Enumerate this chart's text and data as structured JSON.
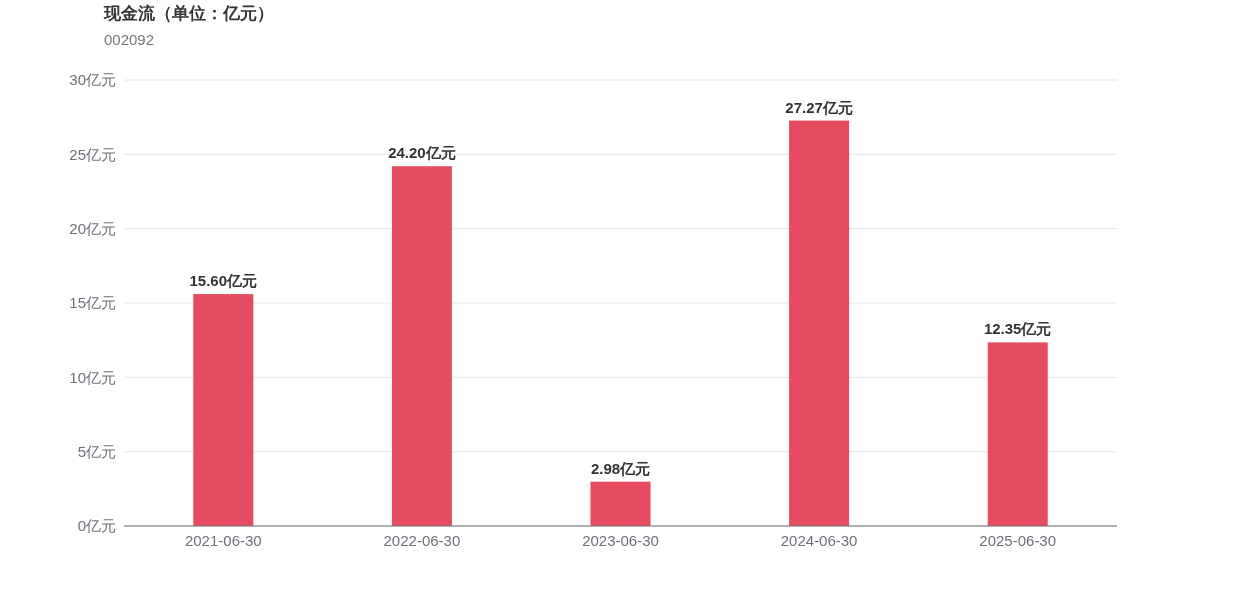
{
  "chart_data": {
    "type": "bar",
    "title": "现金流（单位：亿元）",
    "subtitle": "002092",
    "categories": [
      "2021-06-30",
      "2022-06-30",
      "2023-06-30",
      "2024-06-30",
      "2025-06-30"
    ],
    "values": [
      15.6,
      24.2,
      2.98,
      27.27,
      12.35
    ],
    "value_labels": [
      "15.60亿元",
      "24.20亿元",
      "2.98亿元",
      "27.27亿元",
      "12.35亿元"
    ],
    "color": "#e64b5f",
    "ylim": [
      0,
      30
    ],
    "yticks": [
      {
        "value": 0,
        "label": "0亿元"
      },
      {
        "value": 5,
        "label": "5亿元"
      },
      {
        "value": 10,
        "label": "10亿元"
      },
      {
        "value": 15,
        "label": "15亿元"
      },
      {
        "value": 20,
        "label": "20亿元"
      },
      {
        "value": 25,
        "label": "25亿元"
      },
      {
        "value": 30,
        "label": "30亿元"
      }
    ],
    "grid": "y"
  }
}
